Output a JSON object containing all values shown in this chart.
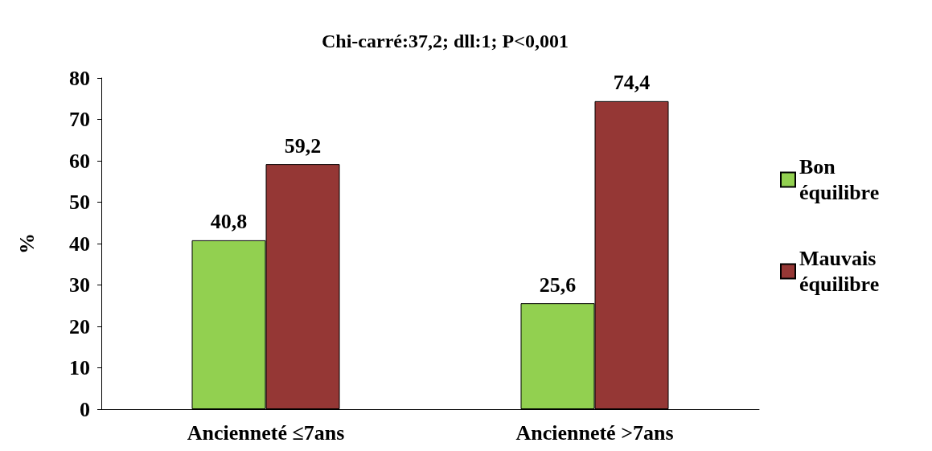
{
  "chart_data": {
    "type": "bar",
    "title": "Chi-carré:37,2; dll:1; P<0,001",
    "ylabel": "%",
    "categories": [
      "Ancienneté ≤7ans",
      "Ancienneté >7ans"
    ],
    "series": [
      {
        "name": "Bon équilibre",
        "color": "#92d050",
        "values": [
          40.8,
          25.6
        ],
        "value_labels": [
          "40,8",
          "25,6"
        ]
      },
      {
        "name": "Mauvais équilibre",
        "color": "#953735",
        "values": [
          59.2,
          74.4
        ],
        "value_labels": [
          "59,2",
          "74,4"
        ]
      }
    ],
    "ylim": [
      0,
      80
    ],
    "yticks": [
      0,
      10,
      20,
      30,
      40,
      50,
      60,
      70,
      80
    ],
    "grid": false,
    "legend": "right"
  }
}
